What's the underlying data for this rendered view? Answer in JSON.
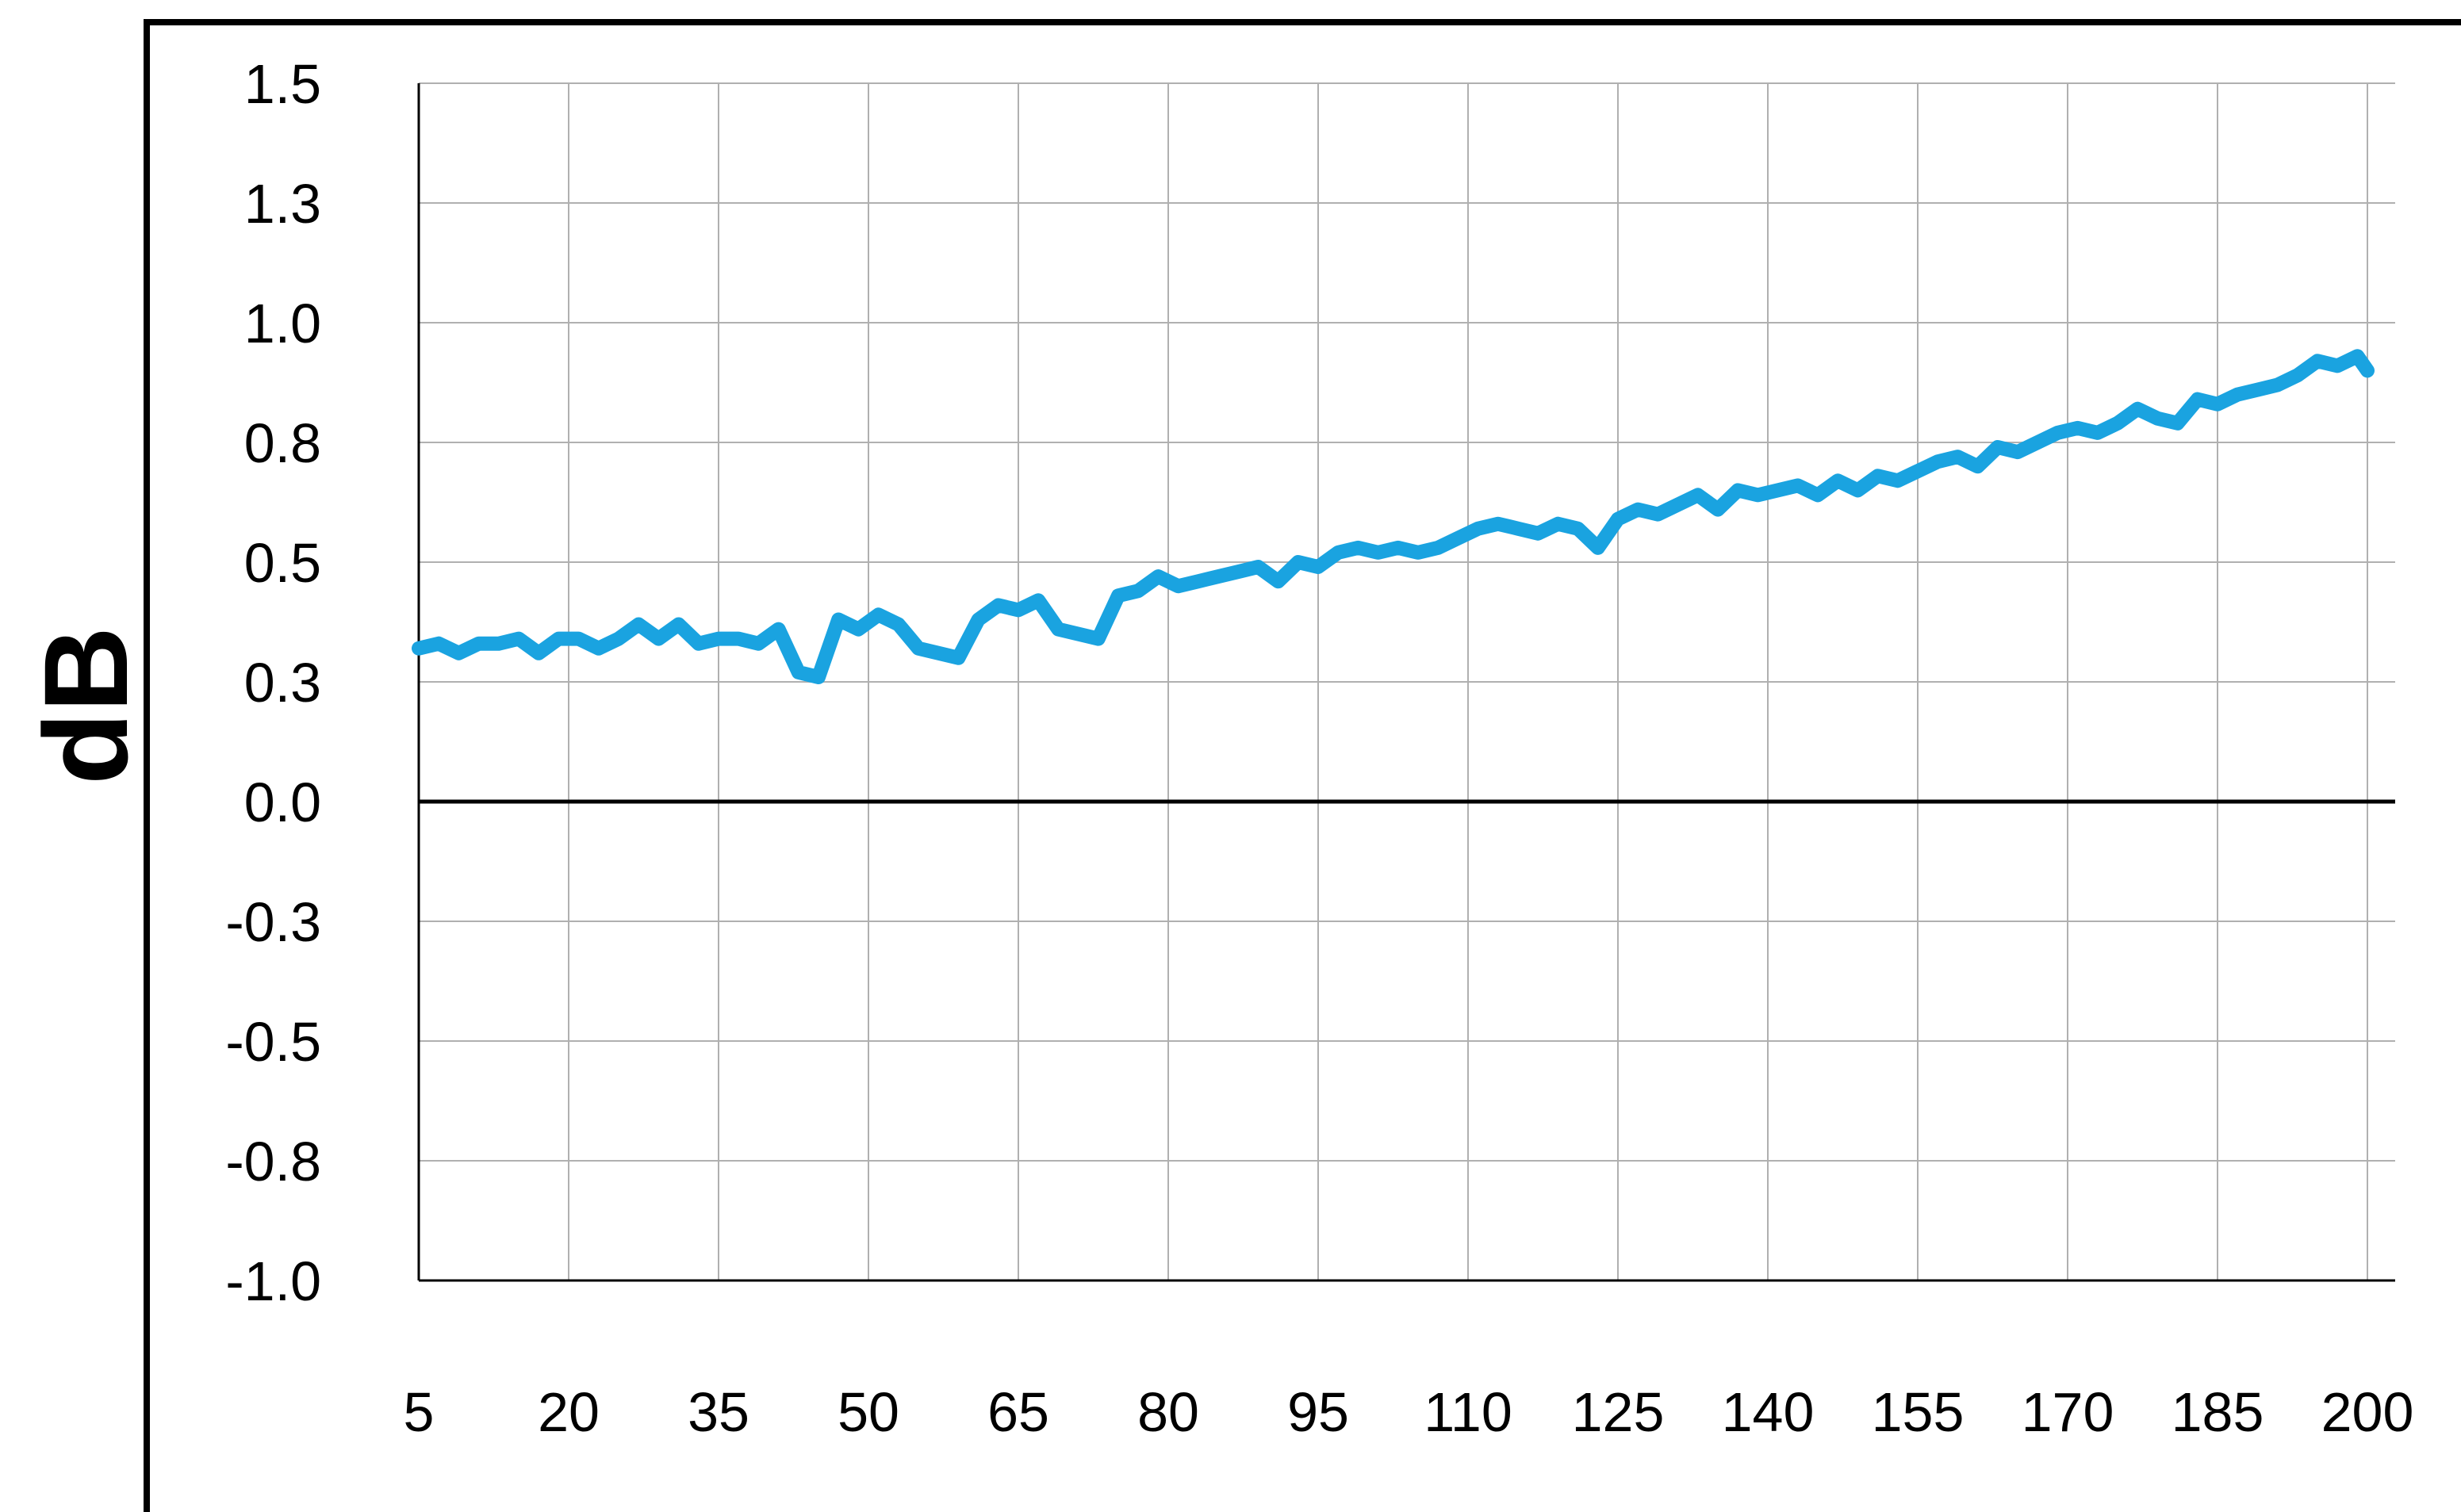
{
  "chart_data": {
    "type": "line",
    "title": "",
    "xlabel": "",
    "ylabel": "dB",
    "xlim": [
      5,
      200
    ],
    "ylim": [
      -1.0,
      1.5
    ],
    "grid": true,
    "x_ticks": [
      "5",
      "20",
      "35",
      "50",
      "65",
      "80",
      "95",
      "110",
      "125",
      "140",
      "155",
      "170",
      "185",
      "200"
    ],
    "x_tick_values": [
      5,
      20,
      35,
      50,
      65,
      80,
      95,
      110,
      125,
      140,
      155,
      170,
      185,
      200
    ],
    "y_ticks": [
      "1.5",
      "1.3",
      "1.0",
      "0.8",
      "0.5",
      "0.3",
      "0.0",
      "-0.3",
      "-0.5",
      "-0.8",
      "-1.0"
    ],
    "y_tick_values": [
      1.5,
      1.25,
      1.0,
      0.75,
      0.5,
      0.25,
      0.0,
      -0.25,
      -0.5,
      -0.75,
      -1.0
    ],
    "series": [
      {
        "color": "#1aa3e0",
        "x": [
          5,
          7,
          9,
          11,
          13,
          15,
          17,
          19,
          21,
          23,
          25,
          27,
          29,
          31,
          33,
          35,
          37,
          39,
          41,
          43,
          45,
          47,
          49,
          51,
          53,
          55,
          57,
          59,
          61,
          63,
          65,
          67,
          69,
          71,
          73,
          75,
          77,
          79,
          81,
          83,
          85,
          87,
          89,
          91,
          93,
          95,
          97,
          99,
          101,
          103,
          105,
          107,
          109,
          111,
          113,
          115,
          117,
          119,
          121,
          123,
          125,
          127,
          129,
          131,
          133,
          135,
          137,
          139,
          141,
          143,
          145,
          147,
          149,
          151,
          153,
          155,
          157,
          159,
          161,
          163,
          165,
          167,
          169,
          171,
          173,
          175,
          177,
          179,
          181,
          183,
          185,
          187,
          189,
          191,
          193,
          195,
          197,
          199,
          200
        ],
        "y": [
          0.32,
          0.33,
          0.31,
          0.33,
          0.33,
          0.34,
          0.31,
          0.34,
          0.34,
          0.32,
          0.34,
          0.37,
          0.34,
          0.37,
          0.33,
          0.34,
          0.34,
          0.33,
          0.36,
          0.27,
          0.26,
          0.38,
          0.36,
          0.39,
          0.37,
          0.32,
          0.31,
          0.3,
          0.38,
          0.41,
          0.4,
          0.42,
          0.36,
          0.35,
          0.34,
          0.43,
          0.44,
          0.47,
          0.45,
          0.46,
          0.47,
          0.48,
          0.49,
          0.46,
          0.5,
          0.49,
          0.52,
          0.53,
          0.52,
          0.53,
          0.52,
          0.53,
          0.55,
          0.57,
          0.58,
          0.57,
          0.56,
          0.58,
          0.57,
          0.53,
          0.59,
          0.61,
          0.6,
          0.62,
          0.64,
          0.61,
          0.65,
          0.64,
          0.65,
          0.66,
          0.64,
          0.67,
          0.65,
          0.68,
          0.67,
          0.69,
          0.71,
          0.72,
          0.7,
          0.74,
          0.73,
          0.75,
          0.77,
          0.78,
          0.77,
          0.79,
          0.82,
          0.8,
          0.79,
          0.84,
          0.83,
          0.85,
          0.86,
          0.87,
          0.89,
          0.92,
          0.91,
          0.93,
          0.9
        ]
      }
    ]
  }
}
